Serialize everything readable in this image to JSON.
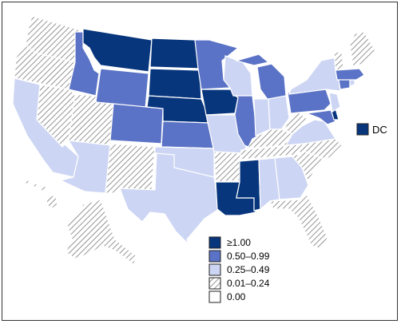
{
  "colors": {
    "ge1": "#08367d",
    "c050": "#5b73c6",
    "c025": "#ccd5f3",
    "hatch": "#e8e8e8",
    "zero": "#ffffff"
  },
  "legend": {
    "items": [
      {
        "label": "≥1.00",
        "class": "ge1"
      },
      {
        "label": "0.50–0.99",
        "class": "c050"
      },
      {
        "label": "0.25–0.49",
        "class": "c025"
      },
      {
        "label": "0.01–0.24",
        "class": "hatch"
      },
      {
        "label": "0.00",
        "class": "zero"
      }
    ]
  },
  "dc": {
    "label": "DC",
    "class": "ge1"
  },
  "states": [
    {
      "name": "washington",
      "class": "hatch"
    },
    {
      "name": "oregon",
      "class": "hatch"
    },
    {
      "name": "california",
      "class": "c025"
    },
    {
      "name": "nevada",
      "class": "hatch"
    },
    {
      "name": "idaho",
      "class": "c050"
    },
    {
      "name": "montana",
      "class": "ge1"
    },
    {
      "name": "wyoming",
      "class": "c050"
    },
    {
      "name": "utah",
      "class": "hatch"
    },
    {
      "name": "arizona",
      "class": "c025"
    },
    {
      "name": "colorado",
      "class": "c050"
    },
    {
      "name": "new-mexico",
      "class": "hatch"
    },
    {
      "name": "north-dakota",
      "class": "ge1"
    },
    {
      "name": "south-dakota",
      "class": "ge1"
    },
    {
      "name": "nebraska",
      "class": "ge1"
    },
    {
      "name": "kansas",
      "class": "c050"
    },
    {
      "name": "oklahoma",
      "class": "c025"
    },
    {
      "name": "texas",
      "class": "c025"
    },
    {
      "name": "minnesota",
      "class": "c050"
    },
    {
      "name": "iowa",
      "class": "ge1"
    },
    {
      "name": "missouri",
      "class": "c025"
    },
    {
      "name": "arkansas",
      "class": "hatch"
    },
    {
      "name": "louisiana",
      "class": "ge1"
    },
    {
      "name": "wisconsin",
      "class": "c025"
    },
    {
      "name": "illinois",
      "class": "c050"
    },
    {
      "name": "michigan",
      "class": "c050"
    },
    {
      "name": "indiana",
      "class": "c025"
    },
    {
      "name": "ohio",
      "class": "c025"
    },
    {
      "name": "kentucky",
      "class": "hatch"
    },
    {
      "name": "tennessee",
      "class": "hatch"
    },
    {
      "name": "mississippi",
      "class": "ge1"
    },
    {
      "name": "alabama",
      "class": "c025"
    },
    {
      "name": "georgia",
      "class": "c025"
    },
    {
      "name": "florida",
      "class": "hatch"
    },
    {
      "name": "south-carolina",
      "class": "hatch"
    },
    {
      "name": "north-carolina",
      "class": "hatch"
    },
    {
      "name": "virginia",
      "class": "c025"
    },
    {
      "name": "west-virginia",
      "class": "hatch"
    },
    {
      "name": "pennsylvania",
      "class": "c050"
    },
    {
      "name": "new-york",
      "class": "c025"
    },
    {
      "name": "maryland",
      "class": "c050"
    },
    {
      "name": "delaware",
      "class": "ge1"
    },
    {
      "name": "new-jersey",
      "class": "c025"
    },
    {
      "name": "connecticut",
      "class": "c050"
    },
    {
      "name": "rhode-island",
      "class": "c025"
    },
    {
      "name": "massachusetts",
      "class": "c050"
    },
    {
      "name": "vermont",
      "class": "hatch"
    },
    {
      "name": "new-hampshire",
      "class": "zero"
    },
    {
      "name": "maine",
      "class": "hatch"
    },
    {
      "name": "alaska",
      "class": "hatch"
    },
    {
      "name": "hawaii",
      "class": "hatch"
    }
  ]
}
